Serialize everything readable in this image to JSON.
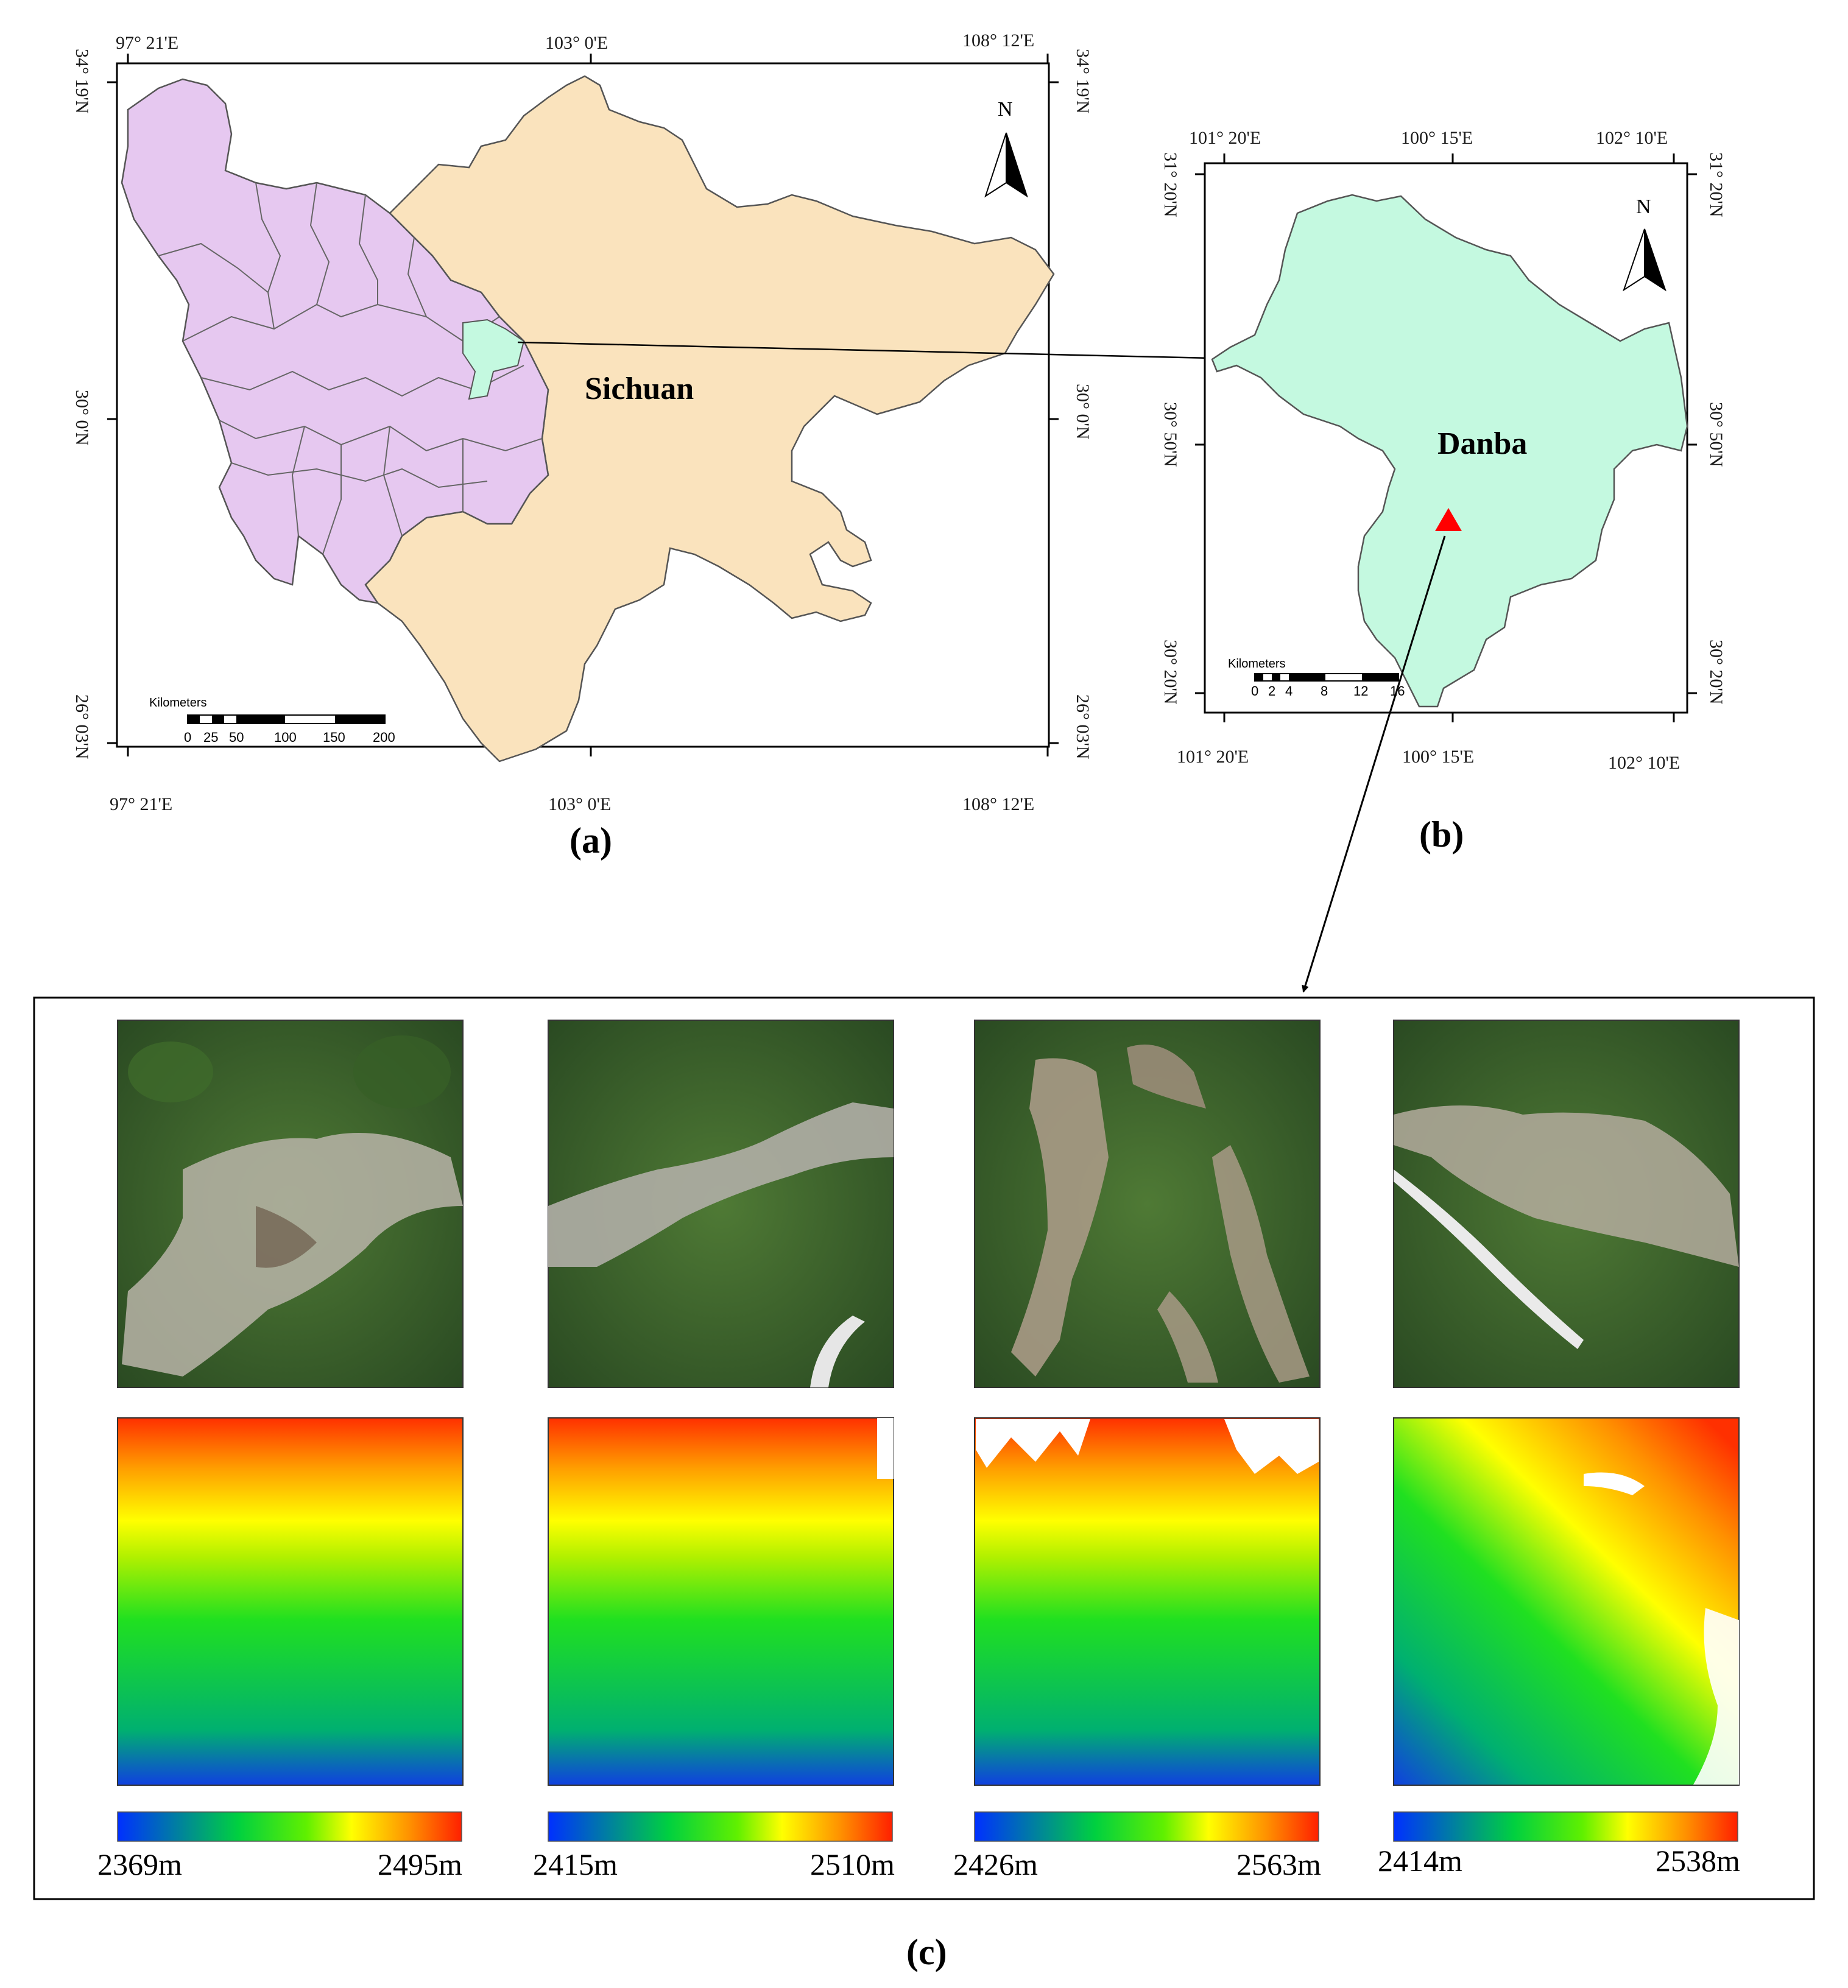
{
  "panel_a": {
    "label": "(a)",
    "region_name": "Sichuan",
    "north": "N",
    "coords_top": [
      "97° 21'E",
      "103° 0'E",
      "108° 12'E"
    ],
    "coords_bottom": [
      "97° 21'E",
      "103° 0'E",
      "108° 12'E"
    ],
    "coords_left": [
      "34° 19'N",
      "30° 0'N",
      "26° 03'N"
    ],
    "coords_right": [
      "34° 19'N",
      "30° 0'N",
      "26° 03'N"
    ],
    "scalebar": {
      "title": "Kilometers",
      "ticks": [
        "0",
        "25",
        "50",
        "100",
        "150",
        "200"
      ]
    },
    "colors": {
      "sichuan": "#fae3bd",
      "western_prefectures": "#e6c8f0",
      "danba": "#c4f9e0",
      "boundary": "#555555"
    }
  },
  "panel_b": {
    "label": "(b)",
    "region_name": "Danba",
    "north": "N",
    "coords_top": [
      "101° 20'E",
      "100° 15'E",
      "102° 10'E"
    ],
    "coords_bottom": [
      "101° 20'E",
      "100° 15'E",
      "102° 10'E"
    ],
    "coords_left": [
      "31° 20'N",
      "30° 50'N",
      "30° 20'N"
    ],
    "coords_right": [
      "31° 20'N",
      "30° 50'N",
      "30° 20'N"
    ],
    "scalebar": {
      "title": "Kilometers",
      "ticks": [
        "0",
        "2",
        "4",
        "8",
        "12",
        "16"
      ]
    },
    "colors": {
      "danba": "#c4f9e0",
      "marker": "#ff0000"
    }
  },
  "panel_c": {
    "label": "(c)",
    "sites": [
      {
        "elev_min": "2369m",
        "elev_max": "2495m"
      },
      {
        "elev_min": "2415m",
        "elev_max": "2510m"
      },
      {
        "elev_min": "2426m",
        "elev_max": "2563m"
      },
      {
        "elev_min": "2414m",
        "elev_max": "2538m"
      }
    ],
    "colormap": [
      "#0030ff",
      "#00c840",
      "#40f000",
      "#ffff00",
      "#ff9000",
      "#ff2000"
    ]
  }
}
